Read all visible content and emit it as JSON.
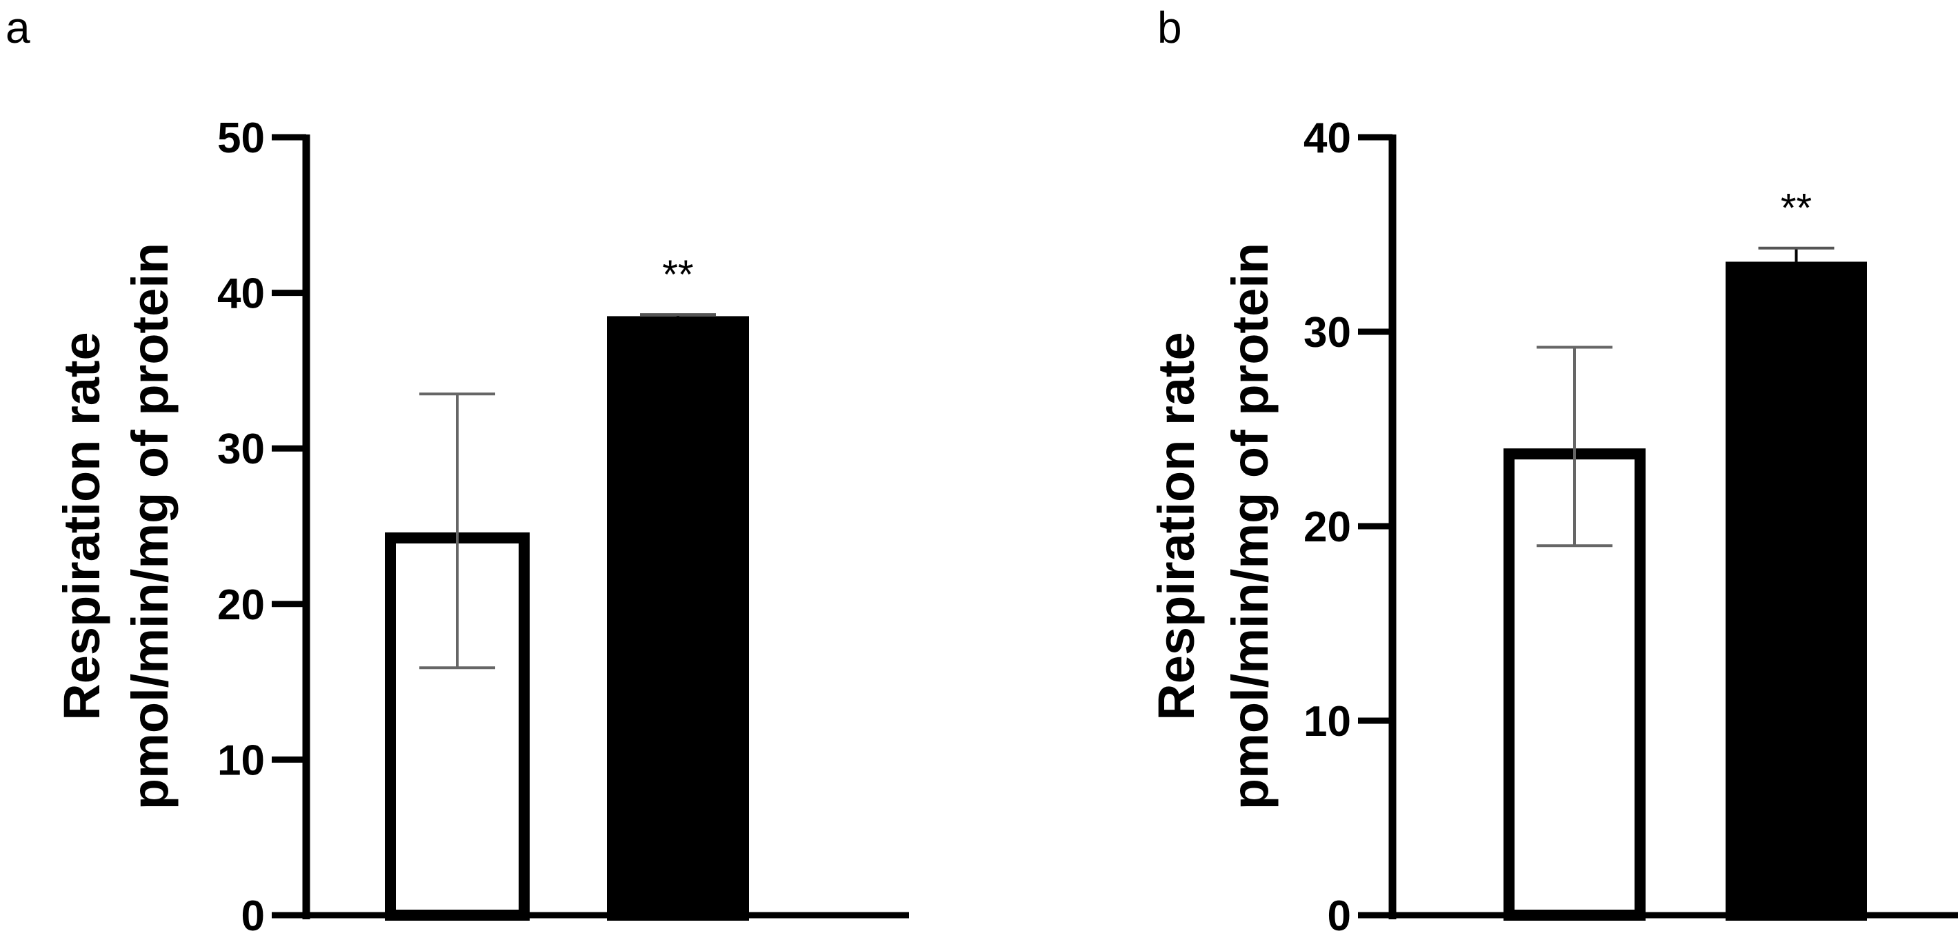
{
  "chart_data": [
    {
      "type": "bar",
      "panel_label": "a",
      "ylabel_line1": "Respiration rate",
      "ylabel_line2": "pmol/min/mg of protein",
      "ylim": [
        0,
        50
      ],
      "yticks": [
        0,
        10,
        20,
        30,
        40,
        50
      ],
      "categories": [
        "",
        ""
      ],
      "values": [
        24.6,
        38.5
      ],
      "error_low": [
        15.9,
        38.5
      ],
      "error_high": [
        33.5,
        38.6
      ],
      "fills": [
        "#ffffff",
        "#000000"
      ],
      "annotations": [
        "",
        "**"
      ],
      "grid": false
    },
    {
      "type": "bar",
      "panel_label": "b",
      "ylabel_line1": "Respiration rate",
      "ylabel_line2": "pmol/min/mg of protein",
      "ylim": [
        0,
        40
      ],
      "yticks": [
        0,
        10,
        20,
        30,
        40
      ],
      "categories": [
        "",
        ""
      ],
      "values": [
        24.0,
        33.6
      ],
      "error_low": [
        19.0,
        33.6
      ],
      "error_high": [
        29.2,
        34.3
      ],
      "fills": [
        "#ffffff",
        "#000000"
      ],
      "annotations": [
        "",
        "**"
      ],
      "grid": false
    }
  ],
  "colors": {
    "axis": "#000000",
    "error_bar": "#666666"
  }
}
